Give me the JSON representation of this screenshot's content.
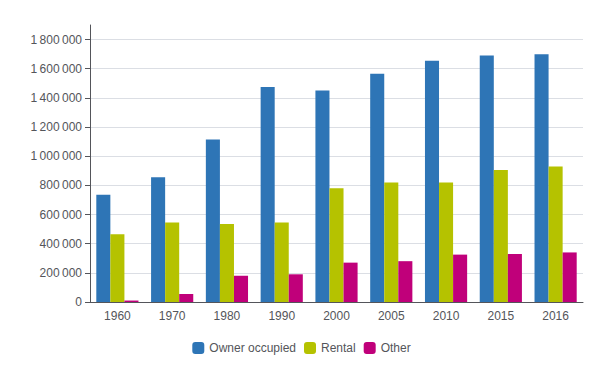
{
  "chart_data": {
    "type": "bar",
    "categories": [
      "1960",
      "1970",
      "1980",
      "1990",
      "2000",
      "2005",
      "2010",
      "2015",
      "2016"
    ],
    "series": [
      {
        "name": "Owner occupied",
        "color": "#2e75b6",
        "values": [
          735000,
          855000,
          1115000,
          1475000,
          1450000,
          1565000,
          1655000,
          1690000,
          1700000
        ]
      },
      {
        "name": "Rental",
        "color": "#b5c200",
        "values": [
          465000,
          545000,
          535000,
          545000,
          780000,
          820000,
          820000,
          905000,
          930000
        ]
      },
      {
        "name": "Other",
        "color": "#c0007a",
        "values": [
          10000,
          55000,
          180000,
          190000,
          270000,
          280000,
          325000,
          330000,
          340000
        ]
      }
    ],
    "ylim": [
      0,
      1900000
    ],
    "yticks": [
      0,
      {
        "value": 200000,
        "label": "200 000"
      },
      {
        "value": 400000,
        "label": "400 000"
      },
      {
        "value": 600000,
        "label": "600 000"
      },
      {
        "value": 800000,
        "label": "800 000"
      },
      {
        "value": 1000000,
        "label": "1 000 000"
      },
      {
        "value": 1200000,
        "label": "1 200 000"
      },
      {
        "value": 1400000,
        "label": "1 400 000"
      },
      {
        "value": 1600000,
        "label": "1 600 000"
      },
      {
        "value": 1800000,
        "label": "1 800 000"
      }
    ],
    "grid": true,
    "legend": "bottom"
  }
}
